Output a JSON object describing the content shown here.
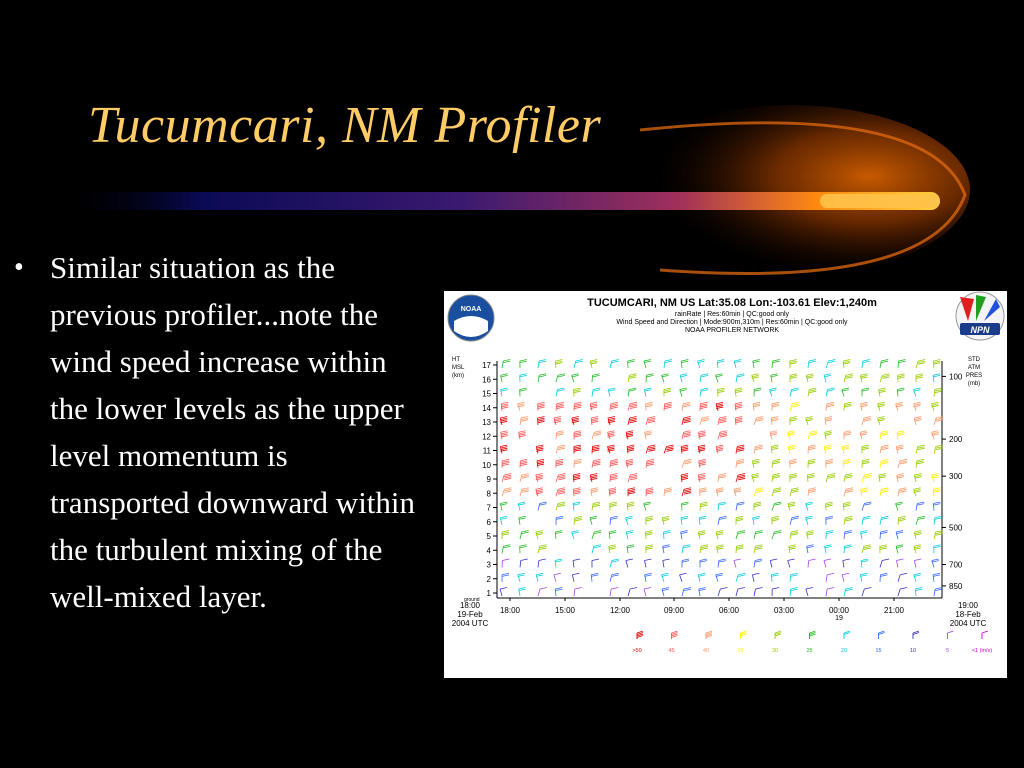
{
  "slide": {
    "title": "Tucumcari, NM Profiler",
    "bullet_marker": "•",
    "bullet_text": "Similar situation as the previous profiler...note the wind speed increase within the lower levels as the upper level momentum is transported downward within the turbulent mixing of the well-mixed layer.",
    "colors": {
      "background": "#000000",
      "title": "#ffcc66",
      "body": "#ffffff"
    }
  },
  "profiler_image": {
    "header_line1": "TUCUMCARI, NM US  Lat:35.08 Lon:-103.61 Elev:1,240m",
    "header_line2": "rainRate | Res:60min | QC:good only",
    "header_line3": "Wind Speed and Direction | Mode:900m,310m | Res:60min | QC:good only",
    "header_line4": "NOAA PROFILER NETWORK",
    "left_logo": "NOAA",
    "right_logo": "NPN",
    "left_axis_title": [
      "HT",
      "MSL",
      "(km)"
    ],
    "left_ticks": [
      "17",
      "16",
      "15",
      "14",
      "13",
      "12",
      "11",
      "10",
      "9",
      "8",
      "7",
      "6",
      "5",
      "4",
      "3",
      "2",
      "1"
    ],
    "ground_label": "ground",
    "right_axis_title": [
      "STD",
      "ATM",
      "PRES",
      "(mb)"
    ],
    "right_ticks": [
      "100",
      "200",
      "300",
      "500",
      "700",
      "850"
    ],
    "left_time": [
      "18:00",
      "19-Feb",
      "2004 UTC"
    ],
    "right_time": [
      "19:00",
      "18-Feb",
      "2004 UTC"
    ],
    "time_ticks": [
      "18:00",
      "15:00",
      "12:00",
      "09:00",
      "06:00",
      "03:00",
      "00:00",
      "21:00"
    ],
    "day_marker": "19",
    "legend": [
      {
        "label": ">50",
        "color": "#e60000"
      },
      {
        "label": "45",
        "color": "#ff5555"
      },
      {
        "label": "40",
        "color": "#ff9966"
      },
      {
        "label": "35",
        "color": "#ffee00"
      },
      {
        "label": "30",
        "color": "#99cc00"
      },
      {
        "label": "25",
        "color": "#22bb22"
      },
      {
        "label": "20",
        "color": "#00ccdd"
      },
      {
        "label": "15",
        "color": "#3366ff"
      },
      {
        "label": "10",
        "color": "#3333cc"
      },
      {
        "label": "5",
        "color": "#aa44ee"
      },
      {
        "label": "<1 (m/s)",
        "color": "#cc00cc"
      }
    ]
  }
}
